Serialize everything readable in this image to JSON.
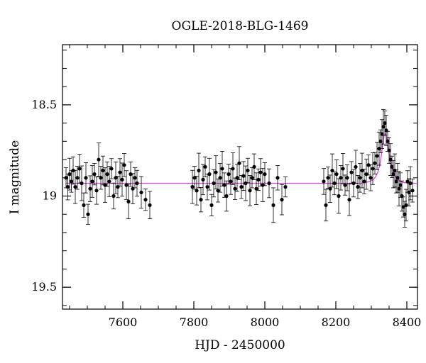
{
  "chart_data": {
    "type": "scatter",
    "title": "OGLE-2018-BLG-1469",
    "xlabel": "HJD - 2450000",
    "ylabel": "I magnitude",
    "xlim": [
      7430,
      8430
    ],
    "ylim": [
      19.62,
      18.17
    ],
    "y_inverted": true,
    "grid": false,
    "legend": "none",
    "x_ticks": [
      7600,
      7800,
      8000,
      8200,
      8400
    ],
    "y_ticks": [
      18.5,
      19,
      19.5
    ],
    "y_tick_labels": [
      "18.5",
      "19",
      "19.5"
    ],
    "x_minor_step": 50,
    "y_minor_step": 0.1,
    "colors": {
      "points": "#000000",
      "model": "#e040e0"
    },
    "series": [
      {
        "type": "scatter",
        "note_seeds": [
          [
            7440,
            18.9
          ],
          [
            7445,
            18.95
          ],
          [
            7450,
            18.88
          ],
          [
            7455,
            18.92
          ],
          [
            7460,
            18.86
          ],
          [
            7466,
            18.95
          ],
          [
            7472,
            18.9
          ],
          [
            7478,
            18.85
          ],
          [
            7484,
            18.93
          ],
          [
            7490,
            19.05
          ],
          [
            7496,
            18.9
          ],
          [
            7502,
            19.1
          ],
          [
            7508,
            18.96
          ],
          [
            7514,
            18.92
          ],
          [
            7520,
            18.88
          ],
          [
            7526,
            18.97
          ],
          [
            7532,
            18.8
          ],
          [
            7538,
            18.9
          ],
          [
            7544,
            18.86
          ],
          [
            7550,
            18.94
          ],
          [
            7556,
            18.88
          ],
          [
            7562,
            18.92
          ],
          [
            7568,
            18.85
          ],
          [
            7574,
            19.0
          ],
          [
            7580,
            18.9
          ],
          [
            7586,
            18.95
          ],
          [
            7592,
            18.87
          ],
          [
            7598,
            18.91
          ],
          [
            7604,
            18.83
          ],
          [
            7610,
            18.94
          ],
          [
            7616,
            19.03
          ],
          [
            7622,
            18.88
          ],
          [
            7628,
            18.96
          ],
          [
            7634,
            18.9
          ],
          [
            7640,
            18.93
          ],
          [
            7652,
            18.98
          ],
          [
            7664,
            19.02
          ],
          [
            7676,
            19.05
          ],
          [
            7796,
            18.95
          ],
          [
            7802,
            18.9
          ],
          [
            7808,
            18.97
          ],
          [
            7814,
            18.86
          ],
          [
            7820,
            19.02
          ],
          [
            7826,
            18.91
          ],
          [
            7832,
            18.84
          ],
          [
            7838,
            18.95
          ],
          [
            7844,
            18.88
          ],
          [
            7850,
            19.05
          ],
          [
            7856,
            18.93
          ],
          [
            7862,
            18.87
          ],
          [
            7868,
            18.97
          ],
          [
            7874,
            18.9
          ],
          [
            7880,
            18.85
          ],
          [
            7886,
            18.94
          ],
          [
            7892,
            19.0
          ],
          [
            7898,
            18.88
          ],
          [
            7904,
            18.92
          ],
          [
            7910,
            18.85
          ],
          [
            7916,
            18.96
          ],
          [
            7922,
            18.9
          ],
          [
            7928,
            18.82
          ],
          [
            7934,
            18.95
          ],
          [
            7940,
            18.89
          ],
          [
            7946,
            18.93
          ],
          [
            7952,
            18.86
          ],
          [
            7958,
            18.97
          ],
          [
            7964,
            18.9
          ],
          [
            7970,
            18.84
          ],
          [
            7976,
            18.96
          ],
          [
            7982,
            18.91
          ],
          [
            7988,
            18.87
          ],
          [
            7994,
            18.94
          ],
          [
            8000,
            18.88
          ],
          [
            8012,
            18.93
          ],
          [
            8024,
            19.05
          ],
          [
            8036,
            18.9
          ],
          [
            8048,
            19.02
          ],
          [
            8058,
            18.95
          ],
          [
            8166,
            18.92
          ],
          [
            8172,
            19.05
          ],
          [
            8178,
            18.9
          ],
          [
            8184,
            18.96
          ],
          [
            8190,
            18.86
          ],
          [
            8196,
            18.93
          ],
          [
            8202,
            18.88
          ],
          [
            8208,
            19.0
          ],
          [
            8214,
            18.9
          ],
          [
            8220,
            18.85
          ],
          [
            8226,
            18.94
          ],
          [
            8232,
            18.9
          ],
          [
            8238,
            19.02
          ],
          [
            8244,
            18.87
          ],
          [
            8250,
            18.93
          ],
          [
            8256,
            18.84
          ],
          [
            8262,
            18.95
          ],
          [
            8268,
            18.9
          ],
          [
            8274,
            18.86
          ],
          [
            8280,
            18.92
          ],
          [
            8286,
            18.88
          ],
          [
            8292,
            18.83
          ],
          [
            8298,
            18.9
          ],
          [
            8304,
            18.85
          ],
          [
            8310,
            18.82
          ],
          [
            8316,
            18.78
          ],
          [
            8322,
            18.74
          ],
          [
            8326,
            18.7
          ],
          [
            8330,
            18.66
          ],
          [
            8334,
            18.62
          ],
          [
            8338,
            18.6
          ],
          [
            8342,
            18.64
          ],
          [
            8346,
            18.7
          ],
          [
            8350,
            18.75
          ],
          [
            8354,
            18.8
          ],
          [
            8358,
            18.84
          ],
          [
            8362,
            18.88
          ],
          [
            8366,
            18.86
          ],
          [
            8370,
            18.92
          ],
          [
            8374,
            18.9
          ],
          [
            8378,
            18.96
          ],
          [
            8382,
            18.94
          ],
          [
            8386,
            19.0
          ],
          [
            8390,
            19.06
          ],
          [
            8394,
            19.1
          ],
          [
            8398,
            19.05
          ],
          [
            8402,
            18.92
          ],
          [
            8406,
            18.98
          ],
          [
            8410,
            18.93
          ],
          [
            8416,
            18.97
          ]
        ]
      },
      {
        "type": "line",
        "x": [
          7440,
          8270,
          8285,
          8295,
          8305,
          8312,
          8318,
          8324,
          8328,
          8332,
          8336,
          8340,
          8344,
          8348,
          8352,
          8358,
          8364,
          8372,
          8380,
          8392,
          8405,
          8430
        ],
        "y": [
          18.93,
          18.93,
          18.925,
          18.92,
          18.91,
          18.895,
          18.87,
          18.83,
          18.78,
          18.72,
          18.67,
          18.66,
          18.69,
          18.74,
          18.79,
          18.84,
          18.88,
          18.905,
          18.918,
          18.926,
          18.93,
          18.93
        ]
      }
    ]
  }
}
